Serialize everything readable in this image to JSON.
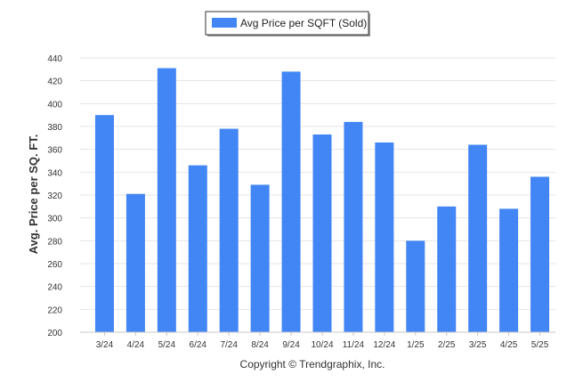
{
  "chart_data": {
    "type": "bar",
    "title": "",
    "xlabel": "",
    "ylabel": "Avg. Price per SQ. FT.",
    "legend": {
      "label": "Avg Price per SQFT (Sold)",
      "placement": "top-center"
    },
    "series_color": "#4285f4",
    "grid": true,
    "ylim": [
      200,
      440
    ],
    "yticks": [
      200,
      220,
      240,
      260,
      280,
      300,
      320,
      340,
      360,
      380,
      400,
      420,
      440
    ],
    "categories": [
      "3/24",
      "4/24",
      "5/24",
      "6/24",
      "7/24",
      "8/24",
      "9/24",
      "10/24",
      "11/24",
      "12/24",
      "1/25",
      "2/25",
      "3/25",
      "4/25",
      "5/25"
    ],
    "values": [
      390,
      321,
      431,
      346,
      378,
      329,
      428,
      373,
      384,
      366,
      280,
      310,
      364,
      308,
      336
    ],
    "footer": "Copyright © Trendgraphix, Inc."
  }
}
